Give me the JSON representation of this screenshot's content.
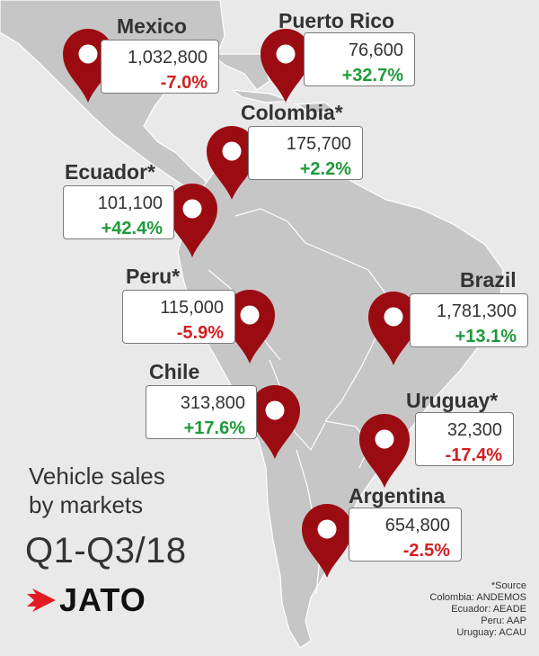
{
  "colors": {
    "pin": "#9b0c12",
    "negative": "#d11f1f",
    "positive": "#1f9a3a",
    "land": "#c8c8c8",
    "sea": "#e9e9e9"
  },
  "markets": [
    {
      "id": "mexico",
      "name": "Mexico",
      "units": "1,032,800",
      "change": "-7.0%",
      "trend": "negative"
    },
    {
      "id": "puerto-rico",
      "name": "Puerto Rico",
      "units": "76,600",
      "change": "+32.7%",
      "trend": "positive"
    },
    {
      "id": "colombia",
      "name": "Colombia*",
      "units": "175,700",
      "change": "+2.2%",
      "trend": "positive"
    },
    {
      "id": "ecuador",
      "name": "Ecuador*",
      "units": "101,100",
      "change": "+42.4%",
      "trend": "positive"
    },
    {
      "id": "peru",
      "name": "Peru*",
      "units": "115,000",
      "change": "-5.9%",
      "trend": "negative"
    },
    {
      "id": "brazil",
      "name": "Brazil",
      "units": "1,781,300",
      "change": "+13.1%",
      "trend": "positive"
    },
    {
      "id": "chile",
      "name": "Chile",
      "units": "313,800",
      "change": "+17.6%",
      "trend": "positive"
    },
    {
      "id": "uruguay",
      "name": "Uruguay*",
      "units": "32,300",
      "change": "-17.4%",
      "trend": "negative"
    },
    {
      "id": "argentina",
      "name": "Argentina",
      "units": "654,800",
      "change": "-2.5%",
      "trend": "negative"
    }
  ],
  "title": {
    "line1": "Vehicle sales",
    "line2": "by markets"
  },
  "period": "Q1-Q3/18",
  "logo": {
    "text": "JATO",
    "icon": "jato-arrow-icon"
  },
  "source": {
    "heading": "*Source",
    "lines": [
      "Colombia: ANDEMOS",
      "Ecuador: AEADE",
      "Peru: AAP",
      "Uruguay: ACAU"
    ]
  }
}
